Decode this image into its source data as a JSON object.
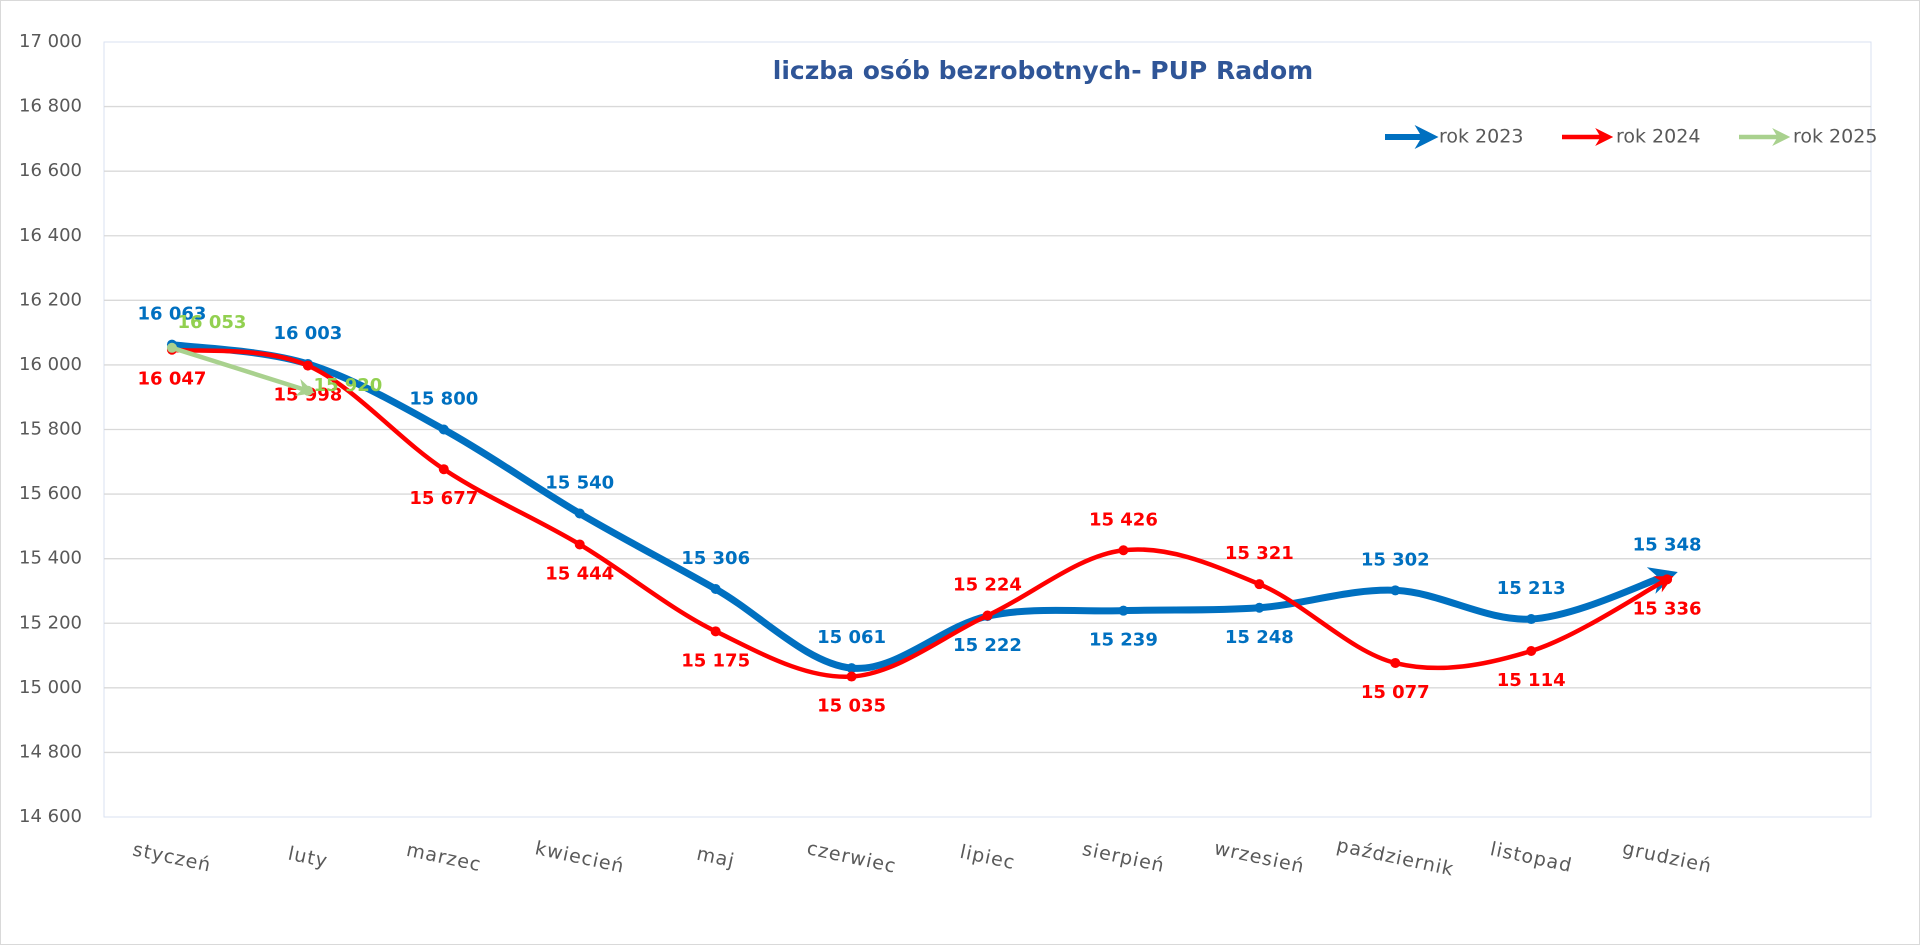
{
  "chart_data": {
    "type": "line",
    "title": "liczba osób bezrobotnych- PUP Radom",
    "categories": [
      "styczeń",
      "luty",
      "marzec",
      "kwiecień",
      "maj",
      "czerwiec",
      "lipiec",
      "sierpień",
      "wrzesień",
      "październik",
      "listopad",
      "grudzień"
    ],
    "series": [
      {
        "name": "rok 2023",
        "color": "#0070c0",
        "values": [
          16063,
          16003,
          15800,
          15540,
          15306,
          15061,
          15222,
          15239,
          15248,
          15302,
          15213,
          15348
        ],
        "value_labels": [
          "16 063",
          "16 003",
          "15 800",
          "15 540",
          "15 306",
          "15 061",
          "15 222",
          "15 239",
          "15 248",
          "15 302",
          "15 213",
          "15 348"
        ]
      },
      {
        "name": "rok 2024",
        "color": "#ff0000",
        "values": [
          16047,
          15998,
          15677,
          15444,
          15175,
          15035,
          15224,
          15426,
          15321,
          15077,
          15114,
          15336
        ],
        "value_labels": [
          "16 047",
          "15 998",
          "15 677",
          "15 444",
          "15 175",
          "15 035",
          "15 224",
          "15 426",
          "15 321",
          "15 077",
          "15 114",
          "15 336"
        ]
      },
      {
        "name": "rok 2025",
        "color": "#a9d18e",
        "values": [
          16053,
          15920,
          null,
          null,
          null,
          null,
          null,
          null,
          null,
          null,
          null,
          null
        ],
        "value_labels": [
          "16 053",
          "15 920",
          null,
          null,
          null,
          null,
          null,
          null,
          null,
          null,
          null,
          null
        ]
      }
    ],
    "ylim": [
      14600,
      17000
    ],
    "yticks": [
      {
        "value": 14600,
        "label": "14 600"
      },
      {
        "value": 14800,
        "label": "14 800"
      },
      {
        "value": 15000,
        "label": "15 000"
      },
      {
        "value": 15200,
        "label": "15 200"
      },
      {
        "value": 15400,
        "label": "15 400"
      },
      {
        "value": 15600,
        "label": "15 600"
      },
      {
        "value": 15800,
        "label": "15 800"
      },
      {
        "value": 16000,
        "label": "16 000"
      },
      {
        "value": 16200,
        "label": "16 200"
      },
      {
        "value": 16400,
        "label": "16 400"
      },
      {
        "value": 16600,
        "label": "16 600"
      },
      {
        "value": 16800,
        "label": "16 800"
      },
      {
        "value": 17000,
        "label": "17 000"
      }
    ],
    "grid": true,
    "legend": "top-right"
  }
}
